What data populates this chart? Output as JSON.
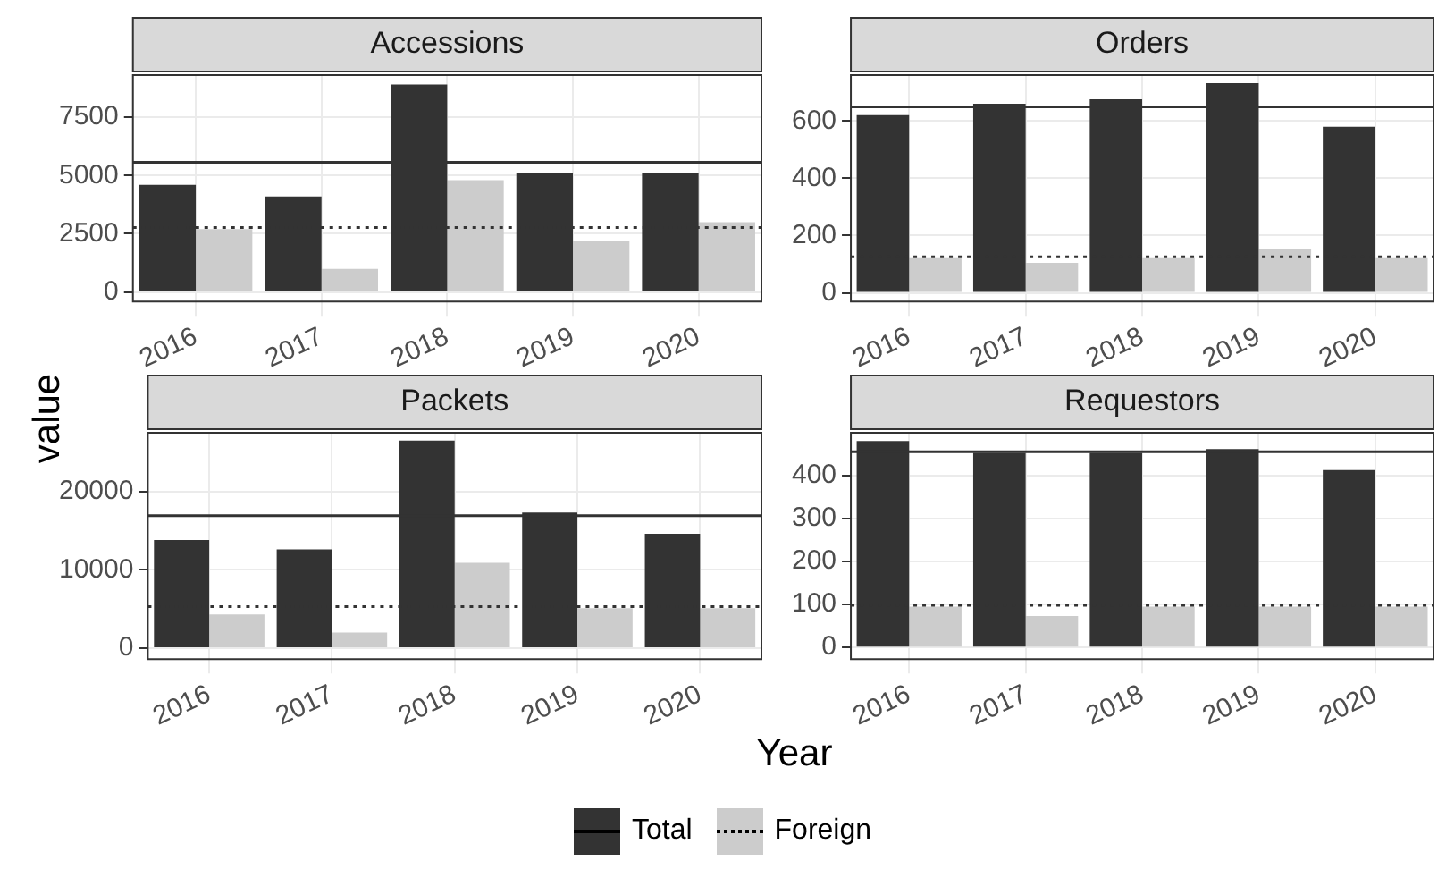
{
  "chart_data": [
    {
      "type": "bar",
      "title": "Accessions",
      "xlabel": "Year",
      "ylabel": "value",
      "legend": "bottom",
      "grid": true,
      "categories": [
        "2016",
        "2017",
        "2018",
        "2019",
        "2020"
      ],
      "series": [
        {
          "name": "Total",
          "color": "#333333",
          "values": [
            4600,
            4100,
            8900,
            5100,
            5100
          ]
        },
        {
          "name": "Foreign",
          "color": "#cccccc",
          "values": [
            2700,
            1000,
            4800,
            2200,
            3000
          ]
        }
      ],
      "ylim": [
        -400,
        9300
      ],
      "yticks": [
        0,
        2500,
        5000,
        7500
      ],
      "ref_lines": [
        {
          "axis": "y",
          "value": 5560,
          "color": "#333333",
          "line_style": "solid"
        },
        {
          "axis": "y",
          "value": 2770,
          "color": "#333333",
          "line_style": "dotted"
        }
      ]
    },
    {
      "type": "bar",
      "title": "Orders",
      "grid": true,
      "categories": [
        "2016",
        "2017",
        "2018",
        "2019",
        "2020"
      ],
      "series": [
        {
          "color": "#333333",
          "values": [
            620,
            660,
            676,
            732,
            580
          ]
        },
        {
          "color": "#cccccc",
          "values": [
            121,
            105,
            121,
            153,
            121
          ]
        }
      ],
      "ylim": [
        -30,
        760
      ],
      "yticks": [
        0,
        200,
        400,
        600
      ],
      "ref_lines": [
        {
          "axis": "y",
          "value": 649,
          "color": "#333333",
          "line_style": "solid"
        },
        {
          "axis": "y",
          "value": 126,
          "color": "#333333",
          "line_style": "dotted"
        }
      ]
    },
    {
      "type": "bar",
      "title": "Packets",
      "grid": true,
      "categories": [
        "2016",
        "2017",
        "2018",
        "2019",
        "2020"
      ],
      "series": [
        {
          "color": "#333333",
          "values": [
            13800,
            12600,
            26500,
            17300,
            14600
          ]
        },
        {
          "color": "#cccccc",
          "values": [
            4300,
            2000,
            10900,
            5100,
            5100
          ]
        }
      ],
      "ylim": [
        -1400,
        27500
      ],
      "yticks": [
        0,
        10000,
        20000
      ],
      "ref_lines": [
        {
          "axis": "y",
          "value": 16900,
          "color": "#333333",
          "line_style": "solid"
        },
        {
          "axis": "y",
          "value": 5300,
          "color": "#333333",
          "line_style": "dotted"
        }
      ]
    },
    {
      "type": "bar",
      "title": "Requestors",
      "grid": true,
      "categories": [
        "2016",
        "2017",
        "2018",
        "2019",
        "2020"
      ],
      "series": [
        {
          "color": "#333333",
          "values": [
            480,
            452,
            452,
            461,
            412
          ]
        },
        {
          "color": "#cccccc",
          "values": [
            95,
            73,
            95,
            95,
            95
          ]
        }
      ],
      "ylim": [
        -27,
        499
      ],
      "yticks": [
        0,
        100,
        200,
        300,
        400
      ],
      "ref_lines": [
        {
          "axis": "y",
          "value": 455,
          "color": "#333333",
          "line_style": "solid"
        },
        {
          "axis": "y",
          "value": 98,
          "color": "#333333",
          "line_style": "dotted"
        }
      ]
    }
  ]
}
